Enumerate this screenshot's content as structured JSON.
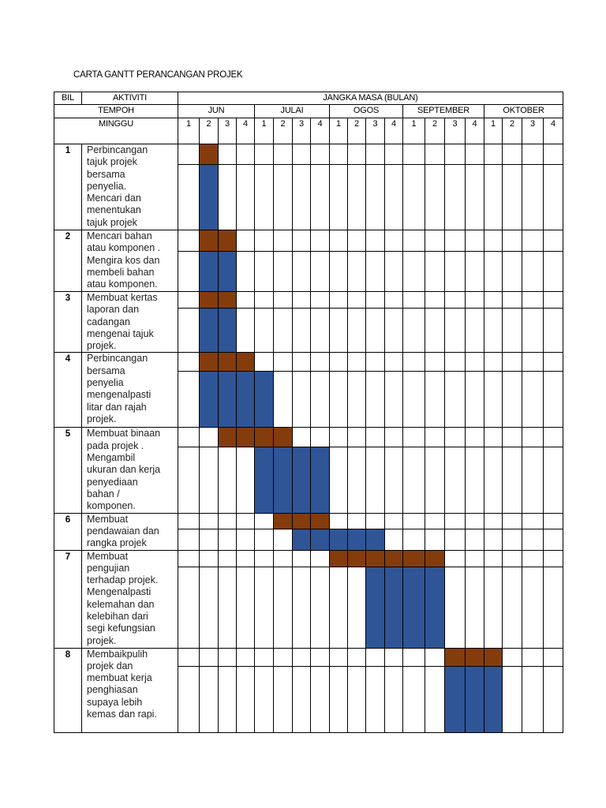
{
  "title": "CARTA GANTT PERANCANGAN PROJEK",
  "headers": {
    "bil": "BIL",
    "aktiviti": "AKTIVITI",
    "jangka_masa": "JANGKA MASA (BULAN)",
    "tempoh": "TEMPOH",
    "minggu": "MINGGU"
  },
  "months": [
    "JUN",
    "JULAI",
    "OGOS",
    "SEPTEMBER",
    "OKTOBER"
  ],
  "weeks": [
    "1",
    "2",
    "3",
    "4"
  ],
  "colors": {
    "plan": "#843C0C",
    "actual": "#2F5597"
  },
  "activities": [
    {
      "bil": "1",
      "text": "Perbincangan\ntajuk projek\nbersama\npenyelia.\nMencari dan\nmenentukan\ntajuk projek",
      "plan": [
        "JUN-2",
        "JUN-2"
      ],
      "actual": [
        "JUN-2",
        "JUN-2"
      ]
    },
    {
      "bil": "2",
      "text": "Mencari bahan\natau komponen .\nMengira kos dan\nmembeli bahan\natau komponen.",
      "plan": [
        "JUN-2",
        "JUN-3"
      ],
      "actual": [
        "JUN-2",
        "JUN-3"
      ]
    },
    {
      "bil": "3",
      "text": "Membuat kertas\nlaporan dan\ncadangan\nmengenai tajuk\nprojek.",
      "plan": [
        "JUN-2",
        "JUN-3"
      ],
      "actual": [
        "JUN-2",
        "JUN-3"
      ]
    },
    {
      "bil": "4",
      "text": "Perbincangan\nbersama\npenyelia\nmengenalpasti\nlitar dan rajah\nprojek.",
      "plan": [
        "JUN-2",
        "JUN-4"
      ],
      "actual": [
        "JUN-2",
        "JULAI-1"
      ]
    },
    {
      "bil": "5",
      "text": "Membuat binaan\npada projek .\nMengambil\nukuran dan kerja\npenyediaan\nbahan /\nkomponen.",
      "plan": [
        "JUN-3",
        "JULAI-2"
      ],
      "actual": [
        "JULAI-1",
        "JULAI-4"
      ]
    },
    {
      "bil": "6",
      "text": "Membuat\npendawaian dan\nrangka projek",
      "plan": [
        "JULAI-2",
        "JULAI-4"
      ],
      "actual": [
        "JULAI-3",
        "OGOS-3"
      ]
    },
    {
      "bil": "7",
      "text": "Membuat\npengujian\nterhadap projek.\nMengenalpasti\nkelemahan dan\nkelebihan  dari\nsegi kefungsian\nprojek.",
      "plan": [
        "OGOS-1",
        "SEPTEMBER-2"
      ],
      "actual": [
        "OGOS-3",
        "SEPTEMBER-2"
      ]
    },
    {
      "bil": "8",
      "text": "Membaikpulih\nprojek dan\nmembuat kerja\npenghiasan\nsupaya lebih\nkemas dan rapi.",
      "plan": [
        "SEPTEMBER-3",
        "OKTOBER-1"
      ],
      "actual": [
        "SEPTEMBER-3",
        "OKTOBER-1"
      ]
    }
  ]
}
